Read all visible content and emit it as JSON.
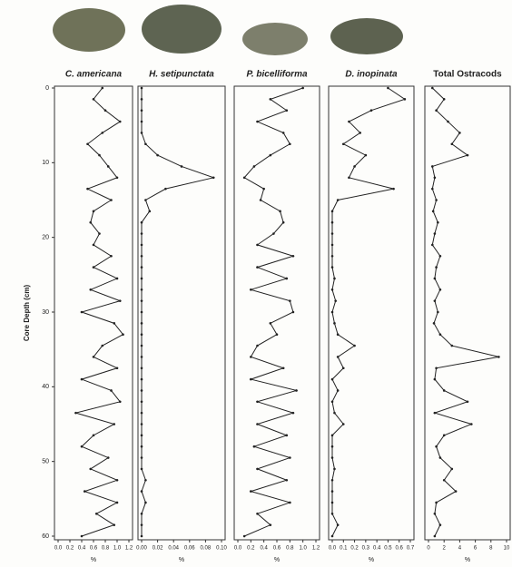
{
  "chart_data": [
    {
      "type": "line",
      "title": "C. americana",
      "xlabel": "%",
      "ylabel": "Core Depth (cm)",
      "xlim": [
        0,
        1.2
      ],
      "xticks": [
        {
          "value": 0,
          "label": "0.0"
        },
        0.2,
        0.4,
        0.6,
        0.8,
        {
          "value": 1,
          "label": "1.0"
        },
        1.2
      ],
      "ylim": [
        0,
        60
      ],
      "yticks": [
        0,
        10,
        20,
        30,
        40,
        50,
        60
      ],
      "y": [
        0,
        1.5,
        3,
        4.5,
        6,
        7.5,
        9,
        10.5,
        12,
        13.5,
        15,
        16.5,
        18,
        19.5,
        21,
        22.5,
        24,
        25.5,
        27,
        28.5,
        30,
        31.5,
        33,
        34.5,
        36,
        37.5,
        39,
        40.5,
        42,
        43.5,
        45,
        46.5,
        48,
        49.5,
        51,
        52.5,
        54,
        55.5,
        57,
        58.5,
        60
      ],
      "values": [
        0.75,
        0.6,
        0.8,
        1.05,
        0.75,
        0.5,
        0.7,
        0.85,
        1.0,
        0.5,
        0.9,
        0.6,
        0.55,
        0.7,
        0.6,
        0.9,
        0.6,
        1.0,
        0.55,
        1.05,
        0.4,
        0.95,
        1.1,
        0.75,
        0.6,
        1.0,
        0.4,
        0.9,
        1.05,
        0.3,
        0.95,
        0.6,
        0.4,
        0.85,
        0.55,
        1.0,
        0.45,
        1.0,
        0.65,
        0.95,
        0.4
      ],
      "color": "#222222"
    },
    {
      "type": "line",
      "title": "H. setipunctata",
      "xlabel": "%",
      "xlim": [
        0,
        0.1
      ],
      "xticks": [
        {
          "value": 0,
          "label": "0.00"
        },
        0.02,
        0.04,
        0.06,
        0.08,
        {
          "value": 0.1,
          "label": "0.10"
        }
      ],
      "ylim": [
        0,
        60
      ],
      "y": [
        0,
        1.5,
        3,
        4.5,
        6,
        7.5,
        9,
        10.5,
        12,
        13.5,
        15,
        16.5,
        18,
        19.5,
        21,
        22.5,
        24,
        25.5,
        27,
        28.5,
        30,
        31.5,
        33,
        34.5,
        36,
        37.5,
        39,
        40.5,
        42,
        43.5,
        45,
        46.5,
        48,
        49.5,
        51,
        52.5,
        54,
        55.5,
        57,
        58.5,
        60
      ],
      "values": [
        0,
        0,
        0,
        0,
        0,
        0.005,
        0.02,
        0.05,
        0.09,
        0.03,
        0.005,
        0.01,
        0,
        0,
        0,
        0,
        0,
        0,
        0,
        0,
        0,
        0,
        0,
        0,
        0,
        0,
        0,
        0,
        0,
        0,
        0,
        0,
        0,
        0,
        0,
        0.005,
        0,
        0.005,
        0,
        0,
        0
      ],
      "color": "#222222"
    },
    {
      "type": "line",
      "title": "P. bicelliforma",
      "xlabel": "%",
      "xlim": [
        0,
        1.2
      ],
      "xticks": [
        {
          "value": 0,
          "label": "0.0"
        },
        0.2,
        0.4,
        0.6,
        0.8,
        {
          "value": 1,
          "label": "1.0"
        },
        1.2
      ],
      "ylim": [
        0,
        60
      ],
      "y": [
        0,
        1.5,
        3,
        4.5,
        6,
        7.5,
        9,
        10.5,
        12,
        13.5,
        15,
        16.5,
        18,
        19.5,
        21,
        22.5,
        24,
        25.5,
        27,
        28.5,
        30,
        31.5,
        33,
        34.5,
        36,
        37.5,
        39,
        40.5,
        42,
        43.5,
        45,
        46.5,
        48,
        49.5,
        51,
        52.5,
        54,
        55.5,
        57,
        58.5,
        60
      ],
      "values": [
        1.0,
        0.5,
        0.75,
        0.3,
        0.7,
        0.8,
        0.5,
        0.25,
        0.1,
        0.4,
        0.35,
        0.65,
        0.7,
        0.55,
        0.3,
        0.85,
        0.3,
        0.75,
        0.2,
        0.8,
        0.85,
        0.5,
        0.6,
        0.3,
        0.2,
        0.7,
        0.2,
        0.9,
        0.3,
        0.85,
        0.3,
        0.75,
        0.25,
        0.8,
        0.3,
        0.75,
        0.2,
        0.8,
        0.3,
        0.5,
        0.1
      ],
      "color": "#222222"
    },
    {
      "type": "line",
      "title": "D. inopinata",
      "xlabel": "%",
      "xlim": [
        0,
        0.7
      ],
      "xticks": [
        {
          "value": 0,
          "label": "0.0"
        },
        0.1,
        0.2,
        0.3,
        0.4,
        0.5,
        0.6,
        0.7
      ],
      "ylim": [
        0,
        60
      ],
      "y": [
        0,
        1.5,
        3,
        4.5,
        6,
        7.5,
        9,
        10.5,
        12,
        13.5,
        15,
        16.5,
        18,
        19.5,
        21,
        22.5,
        24,
        25.5,
        27,
        28.5,
        30,
        31.5,
        33,
        34.5,
        36,
        37.5,
        39,
        40.5,
        42,
        43.5,
        45,
        46.5,
        48,
        49.5,
        51,
        52.5,
        54,
        55.5,
        57,
        58.5,
        60
      ],
      "values": [
        0.5,
        0.65,
        0.35,
        0.15,
        0.25,
        0.1,
        0.3,
        0.2,
        0.15,
        0.55,
        0.05,
        0,
        0,
        0,
        0,
        0,
        0,
        0.02,
        0,
        0.03,
        0,
        0.02,
        0.05,
        0.2,
        0.05,
        0.1,
        0,
        0.05,
        0,
        0.02,
        0.1,
        0,
        0,
        0,
        0.02,
        0,
        0,
        0,
        0,
        0.05,
        0
      ],
      "color": "#222222"
    },
    {
      "type": "line",
      "title": "Total Ostracods",
      "xlabel": "%",
      "xlim": [
        0,
        10
      ],
      "xticks": [
        0,
        2,
        4,
        6,
        8,
        10
      ],
      "ylim": [
        0,
        60
      ],
      "y": [
        0,
        1.5,
        3,
        4.5,
        6,
        7.5,
        9,
        10.5,
        12,
        13.5,
        15,
        16.5,
        18,
        19.5,
        21,
        22.5,
        24,
        25.5,
        27,
        28.5,
        30,
        31.5,
        33,
        34.5,
        36,
        37.5,
        39,
        40.5,
        42,
        43.5,
        45,
        46.5,
        48,
        49.5,
        51,
        52.5,
        54,
        55.5,
        57,
        58.5,
        60
      ],
      "values": [
        0.5,
        2,
        1,
        2.5,
        4,
        3,
        5,
        0.5,
        0.8,
        0.5,
        1,
        0.6,
        1.2,
        0.8,
        0.5,
        1.5,
        1,
        0.8,
        1.5,
        0.8,
        1.2,
        0.7,
        1.5,
        3,
        9,
        1,
        0.8,
        2,
        5,
        0.8,
        5.5,
        2,
        1,
        1.5,
        3,
        2,
        3.5,
        1,
        0.8,
        1.5,
        0.8
      ],
      "color": "#222222"
    }
  ]
}
